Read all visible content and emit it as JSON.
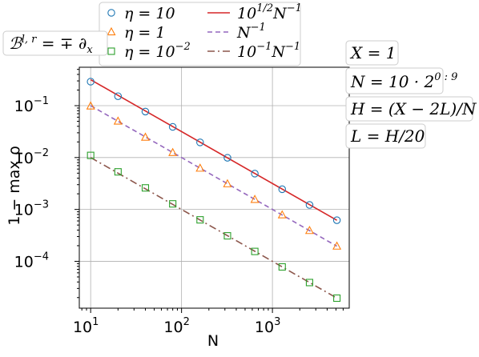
{
  "chart_data": {
    "type": "scatter",
    "xlabel": "N",
    "ylabel": "1 − max ρ",
    "xscale": "log",
    "yscale": "log",
    "xlim": [
      7.5,
      7000
    ],
    "ylim": [
      1.25e-05,
      0.55
    ],
    "grid": true,
    "legend_placement": "top",
    "x": [
      10,
      20,
      40,
      80,
      160,
      320,
      640,
      1280,
      2560,
      5120
    ],
    "series": [
      {
        "name": "η = 10",
        "label_parts": [
          "η = 10"
        ],
        "marker": "circle",
        "color": "#1f77b4",
        "values": [
          0.29,
          0.152,
          0.077,
          0.039,
          0.0196,
          0.0099,
          0.0049,
          0.00245,
          0.00122,
          0.00062
        ]
      },
      {
        "name": "η = 1",
        "label_parts": [
          "η = 1"
        ],
        "marker": "triangle",
        "color": "#ff7f0e",
        "values": [
          0.098,
          0.05,
          0.0245,
          0.0124,
          0.0062,
          0.0031,
          0.00155,
          0.00078,
          0.00039,
          0.000195
        ]
      },
      {
        "name": "η = 10⁻²",
        "label_parts": [
          "η = 10",
          "−2"
        ],
        "marker": "square",
        "color": "#2ca02c",
        "values": [
          0.011,
          0.0053,
          0.0026,
          0.00128,
          0.00063,
          0.00031,
          0.000155,
          7.8e-05,
          3.9e-05,
          1.95e-05
        ]
      }
    ],
    "reference_lines": [
      {
        "name": "10^(1/2) N⁻¹",
        "label_parts": [
          "10",
          "1/2",
          "N",
          "−1"
        ],
        "coef": 3.1623,
        "style": "solid",
        "color": "#d62728"
      },
      {
        "name": "N⁻¹",
        "label_parts": [
          "",
          "",
          "N",
          "−1"
        ],
        "coef": 1,
        "style": "dashed",
        "color": "#9467bd"
      },
      {
        "name": "10⁻¹ N⁻¹",
        "label_parts": [
          "10",
          "−1",
          "N",
          "−1"
        ],
        "coef": 0.1,
        "style": "dashdot",
        "color": "#8c564b"
      }
    ],
    "xticks": [
      {
        "value": 10,
        "mant": "10",
        "exp": "1"
      },
      {
        "value": 100,
        "mant": "10",
        "exp": "2"
      },
      {
        "value": 1000,
        "mant": "10",
        "exp": "3"
      }
    ],
    "yticks": [
      {
        "value": 0.1,
        "mant": "10",
        "exp": "−1"
      },
      {
        "value": 0.01,
        "mant": "10",
        "exp": "−2"
      },
      {
        "value": 0.001,
        "mant": "10",
        "exp": "−3"
      },
      {
        "value": 0.0001,
        "mant": "10",
        "exp": "−4"
      }
    ],
    "annotations": {
      "boundary": {
        "base": "ℬ",
        "sup": "l, r",
        "rest": " = ∓ ∂",
        "sub": "x"
      },
      "X": "X = 1",
      "N_pre": "N = 10 · 2",
      "N_sup": "0 : 9",
      "H": "H = (X − 2L)/N",
      "L": "L = H/20"
    }
  }
}
